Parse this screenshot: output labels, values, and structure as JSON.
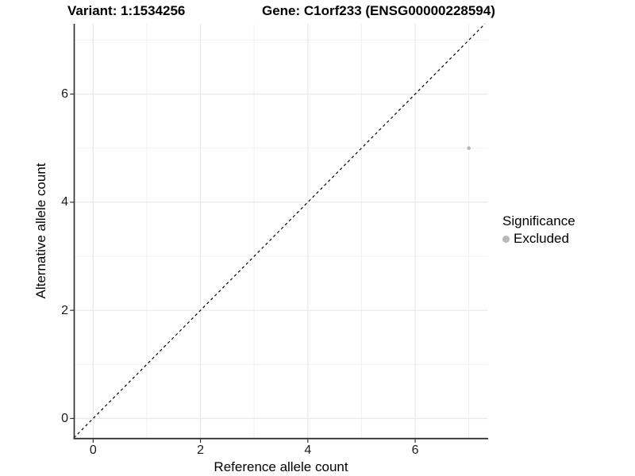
{
  "chart_data": {
    "type": "scatter",
    "title_left": "Variant: 1:1534256",
    "title_right": "Gene: C1orf233 (ENSG00000228594)",
    "xlabel": "Reference allele count",
    "ylabel": "Alternative allele count",
    "xlim": [
      -0.36,
      7.36
    ],
    "ylim": [
      -0.36,
      7.3
    ],
    "x_ticks": [
      0,
      2,
      4,
      6
    ],
    "y_ticks": [
      0,
      2,
      4,
      6
    ],
    "x_minor_ticks": [
      1,
      3,
      5,
      7
    ],
    "y_minor_ticks": [
      1,
      3,
      5,
      7
    ],
    "grid": "major+minor",
    "legend_title": "Significance",
    "legend_position": "right",
    "series": [
      {
        "name": "Excluded",
        "color": "#b8b8b8",
        "points": [
          {
            "x": 7,
            "y": 5
          }
        ]
      }
    ],
    "reference_line": {
      "type": "identity y=x",
      "style": "dashed",
      "color": "#000000"
    }
  },
  "colors": {
    "background": "#ffffff",
    "grid_major": "#e8e8e8",
    "grid_minor": "#f1f1f1",
    "axis_line": "#333333",
    "tick_text": "#1a1a1a",
    "point": "#b8b8b8"
  }
}
